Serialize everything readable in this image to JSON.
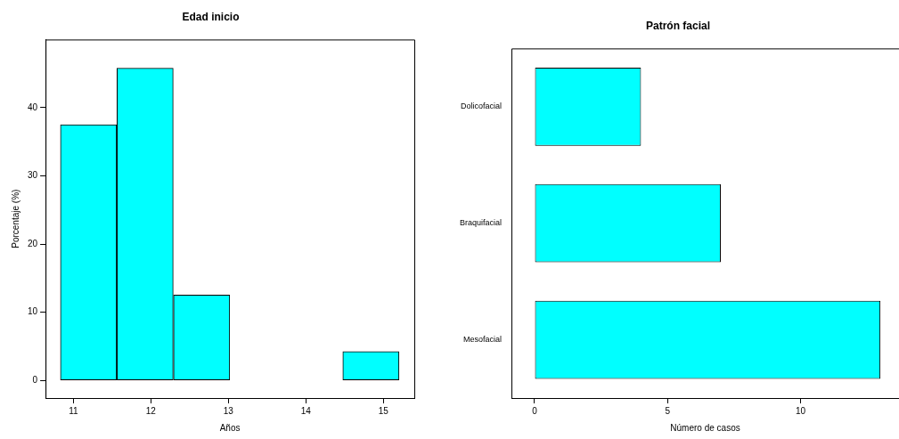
{
  "chart_data": [
    {
      "type": "histogram",
      "title": "Edad inicio",
      "xlabel": "Años",
      "ylabel": "Porcentaje (%)",
      "bins": [
        10.83,
        11.56,
        12.29,
        13.02,
        13.75,
        14.48,
        15.2
      ],
      "values": [
        37.5,
        45.8,
        12.5,
        0,
        0,
        4.2
      ],
      "color": "#00ffff",
      "xlim": [
        10.64,
        15.4
      ],
      "ylim": [
        -2.6,
        50
      ],
      "xticks": [
        11,
        12,
        13,
        14,
        15
      ],
      "yticks": [
        0,
        10,
        20,
        30,
        40
      ]
    },
    {
      "type": "bar",
      "orientation": "horizontal",
      "title": "Patrón facial",
      "xlabel": "Número de casos",
      "categories": [
        "Dolicofacial",
        "Braquifacial",
        "Mesofacial"
      ],
      "values": [
        4,
        7,
        13
      ],
      "color": "#00ffff",
      "xlim": [
        -0.87,
        13.7
      ],
      "xticks": [
        0,
        5,
        10
      ]
    }
  ]
}
